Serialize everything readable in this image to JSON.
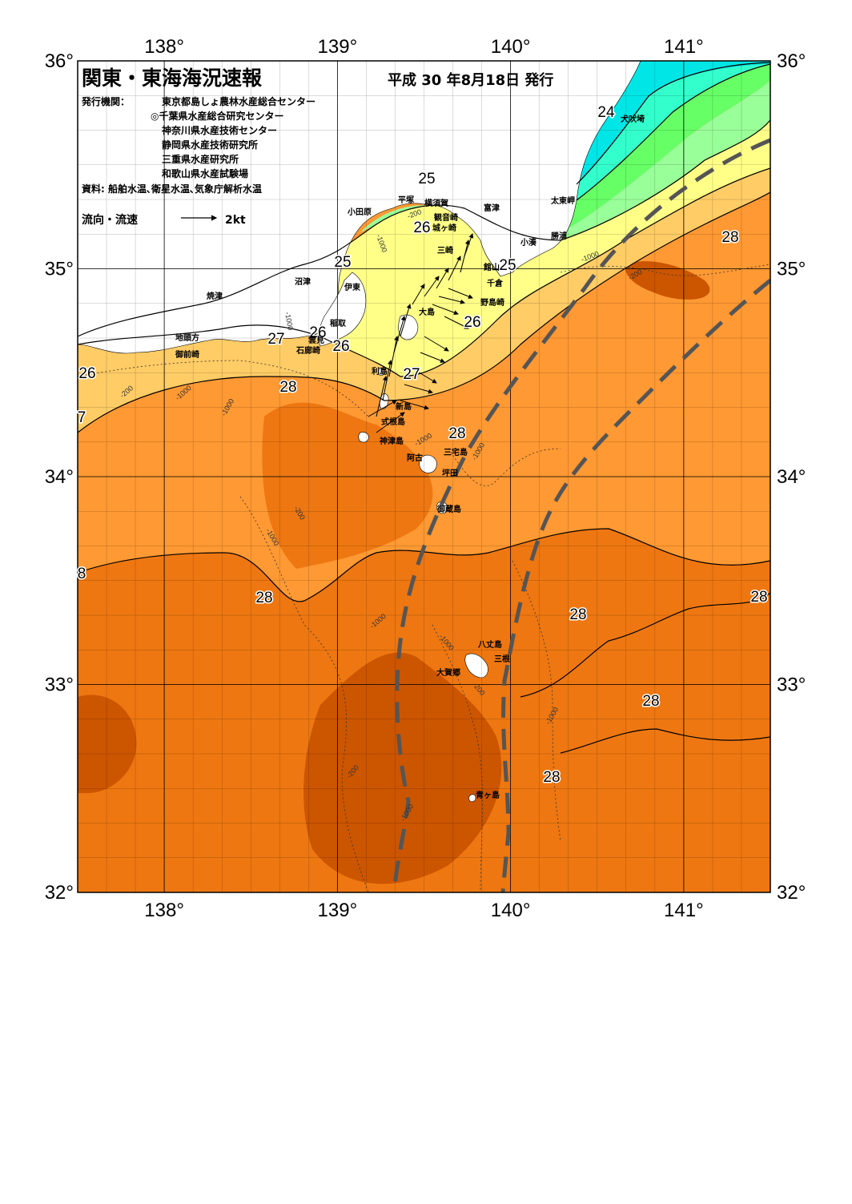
{
  "title": "関東・東海海況速報",
  "issue_date": "平成 30 年8月18日 発行",
  "publisher_label": "発行機関：",
  "publishers": [
    "東京都島しょ農林水産総合センター",
    "◎千葉県水産総合研究センター",
    "神奈川県水産技術センター",
    "静岡県水産技術研究所",
    "三重県水産研究所",
    "和歌山県水産試験場"
  ],
  "source": "資料: 船舶水温､衛星水温､気象庁解析水温",
  "legend": {
    "label": "流向・流速",
    "arrow_value": "2kt"
  },
  "axes": {
    "lon_labels": [
      "138°",
      "139°",
      "140°",
      "141°"
    ],
    "lat_labels": [
      "36°",
      "35°",
      "34°",
      "33°",
      "32°"
    ]
  },
  "colors": {
    "t_lt22": "#00e6e6",
    "t_22_24": "#33ffcc",
    "t_24_25": "#66ff66",
    "t_25_26": "#99ff99",
    "t_26_27": "#ffff88",
    "t_27_28": "#ffcc66",
    "t_28_29": "#ff9933",
    "t_29_30": "#ee7711",
    "t_30_plus": "#cc5500",
    "land": "#ffffff",
    "kuroshio_axis": "#555555"
  },
  "isotherm_labels": [
    {
      "text": "24"
    },
    {
      "text": "25"
    },
    {
      "text": "26"
    },
    {
      "text": "25"
    },
    {
      "text": "25"
    },
    {
      "text": "27"
    },
    {
      "text": "26"
    },
    {
      "text": "26"
    },
    {
      "text": "26"
    },
    {
      "text": "26"
    },
    {
      "text": "27"
    },
    {
      "text": "28"
    },
    {
      "text": "28"
    },
    {
      "text": "28"
    },
    {
      "text": "28"
    },
    {
      "text": "28"
    },
    {
      "text": "28"
    },
    {
      "text": "28"
    },
    {
      "text": "28"
    },
    {
      "text": "7"
    },
    {
      "text": "8"
    }
  ],
  "depth_labels": [
    "-1000",
    "-200",
    "-1000",
    "-200",
    "-1000",
    "-200",
    "-1000",
    "-1000",
    "-1000",
    "-200",
    "-1000",
    "-1000",
    "-1000",
    "-200",
    "-1000",
    "-200",
    "-1000",
    "-1000"
  ],
  "places": [
    "犬吠埼",
    "太東岬",
    "勝浦",
    "小湊",
    "富津",
    "横須賀",
    "平塚",
    "観音崎",
    "城ヶ崎",
    "三崎",
    "小田原",
    "館山",
    "千倉",
    "野島崎",
    "沼津",
    "伊東",
    "大島",
    "稲取",
    "雲見",
    "石廊崎",
    "焼津",
    "地頭方",
    "御前崎",
    "利島",
    "新島",
    "式根島",
    "神津島",
    "三宅島",
    "阿古",
    "坪田",
    "御蔵島",
    "八丈島",
    "三根",
    "大賀郷",
    "青ヶ島"
  ]
}
